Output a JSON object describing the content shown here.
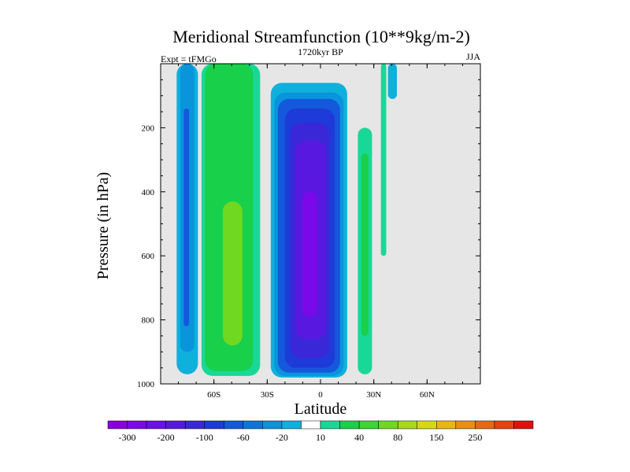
{
  "chart_data": {
    "type": "contour",
    "title": "Meridional Streamfunction (10**9kg/m-2)",
    "left_label": "Expt = tFMGo",
    "center_label": "1720kyr BP",
    "right_label": "JJA",
    "xlabel": "Latitude",
    "ylabel": "Pressure (in hPa)",
    "xlim": [
      -90,
      90
    ],
    "ylim": [
      0,
      1000
    ],
    "y_inverted": true,
    "x_ticks": [
      {
        "value": -60,
        "label": "60S"
      },
      {
        "value": -30,
        "label": "30S"
      },
      {
        "value": 0,
        "label": "0"
      },
      {
        "value": 30,
        "label": "30N"
      },
      {
        "value": 60,
        "label": "60N"
      }
    ],
    "y_ticks": [
      {
        "value": 200,
        "label": "200"
      },
      {
        "value": 400,
        "label": "400"
      },
      {
        "value": 600,
        "label": "600"
      },
      {
        "value": 800,
        "label": "800"
      },
      {
        "value": 1000,
        "label": "1000"
      }
    ],
    "background_color": "#e6e6e6",
    "colorbar": {
      "colors": [
        "#8800e0",
        "#7a08e8",
        "#6a10e8",
        "#5818e0",
        "#3a28d8",
        "#1e3ad8",
        "#1458dc",
        "#0a76dc",
        "#0a94dc",
        "#10b0dc",
        "#ffffff",
        "#18d898",
        "#18d04a",
        "#38d830",
        "#70d820",
        "#a8d818",
        "#d8d810",
        "#e8b810",
        "#e89010",
        "#e86810",
        "#e84010",
        "#e01010"
      ],
      "labels": [
        {
          "index": 1,
          "label": "-300"
        },
        {
          "index": 3,
          "label": "-200"
        },
        {
          "index": 5,
          "label": "-100"
        },
        {
          "index": 7,
          "label": "-60"
        },
        {
          "index": 9,
          "label": "-20"
        },
        {
          "index": 11,
          "label": "10"
        },
        {
          "index": 13,
          "label": "40"
        },
        {
          "index": 15,
          "label": "80"
        },
        {
          "index": 17,
          "label": "150"
        },
        {
          "index": 19,
          "label": "250"
        }
      ]
    },
    "regions": [
      {
        "name": "sh-polar-negative-cell",
        "level": "-20",
        "color": "#10b0dc",
        "lat": [
          -81,
          -69
        ],
        "p": [
          0,
          970
        ]
      },
      {
        "name": "sh-polar-negative-cell-inner",
        "level": "-60",
        "color": "#0a94dc",
        "lat": [
          -79,
          -71
        ],
        "p": [
          0,
          900
        ]
      },
      {
        "name": "sh-polar-negative-cell-core",
        "level": "-100",
        "color": "#1458dc",
        "lat": [
          -77,
          -74
        ],
        "p": [
          140,
          820
        ]
      },
      {
        "name": "sh-ferrel-positive-cell",
        "level": "10",
        "color": "#18d898",
        "lat": [
          -67,
          -34
        ],
        "p": [
          0,
          975
        ]
      },
      {
        "name": "sh-ferrel-positive-cell-inner",
        "level": "40",
        "color": "#18d04a",
        "lat": [
          -65,
          -38
        ],
        "p": [
          0,
          960
        ]
      },
      {
        "name": "sh-ferrel-positive-cell-core",
        "level": "80",
        "color": "#70d820",
        "lat": [
          -55,
          -44
        ],
        "p": [
          430,
          880
        ]
      },
      {
        "name": "hadley-outer",
        "level": "-20",
        "color": "#10b0dc",
        "lat": [
          -28,
          15
        ],
        "p": [
          60,
          980
        ]
      },
      {
        "name": "hadley-60",
        "level": "-60",
        "color": "#0a94dc",
        "lat": [
          -26,
          13
        ],
        "p": [
          90,
          975
        ]
      },
      {
        "name": "hadley-100",
        "level": "-100",
        "color": "#1458dc",
        "lat": [
          -24,
          11
        ],
        "p": [
          110,
          965
        ]
      },
      {
        "name": "hadley-150",
        "level": "-150",
        "color": "#1e3ad8",
        "lat": [
          -20,
          8
        ],
        "p": [
          140,
          950
        ]
      },
      {
        "name": "hadley-200",
        "level": "-200",
        "color": "#3a28d8",
        "lat": [
          -17,
          5
        ],
        "p": [
          185,
          920
        ]
      },
      {
        "name": "hadley-250",
        "level": "-250",
        "color": "#5818e0",
        "lat": [
          -14,
          3
        ],
        "p": [
          240,
          860
        ]
      },
      {
        "name": "hadley-core",
        "level": "-300",
        "color": "#7a08e8",
        "lat": [
          -10,
          -2
        ],
        "p": [
          400,
          790
        ]
      },
      {
        "name": "nh-subtropical-positive-cell",
        "level": "10",
        "color": "#18d898",
        "lat": [
          21,
          29
        ],
        "p": [
          200,
          970
        ]
      },
      {
        "name": "nh-subtropical-positive-core",
        "level": "40",
        "color": "#18d04a",
        "lat": [
          23,
          27
        ],
        "p": [
          280,
          850
        ]
      },
      {
        "name": "nh-upper-positive-streak",
        "level": "10",
        "color": "#18d898",
        "lat": [
          34,
          37
        ],
        "p": [
          0,
          600
        ]
      },
      {
        "name": "nh-upper-negative-streak",
        "level": "-20",
        "color": "#10b0dc",
        "lat": [
          38,
          43
        ],
        "p": [
          0,
          110
        ]
      }
    ]
  }
}
